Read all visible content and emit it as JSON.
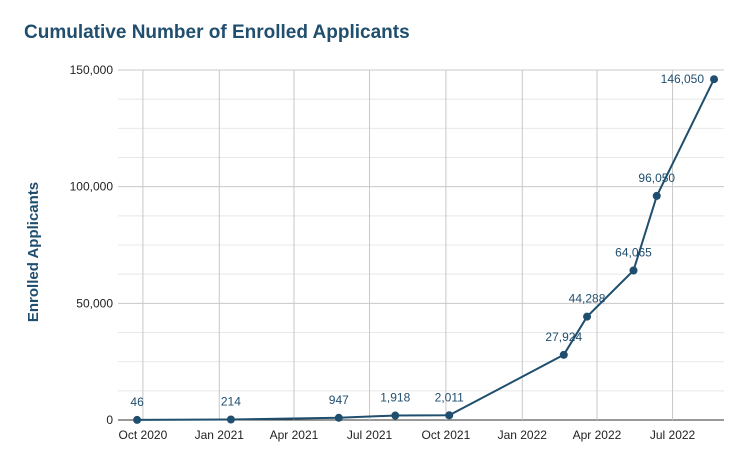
{
  "chart_data": {
    "type": "line",
    "title": "Cumulative Number of Enrolled Applicants",
    "xlabel": "",
    "ylabel": "Enrolled Applicants",
    "ylim": [
      0,
      150000
    ],
    "xlim": [
      "2020-09-01",
      "2022-09-01"
    ],
    "y_ticks": [
      {
        "value": 0,
        "label": "0"
      },
      {
        "value": 50000,
        "label": "50,000"
      },
      {
        "value": 100000,
        "label": "100,000"
      },
      {
        "value": 150000,
        "label": "150,000"
      }
    ],
    "x_ticks": [
      {
        "date": "2020-10-01",
        "label": "Oct 2020"
      },
      {
        "date": "2021-01-01",
        "label": "Jan 2021"
      },
      {
        "date": "2021-04-01",
        "label": "Apr 2021"
      },
      {
        "date": "2021-07-01",
        "label": "Jul 2021"
      },
      {
        "date": "2021-10-01",
        "label": "Oct 2021"
      },
      {
        "date": "2022-01-01",
        "label": "Jan 2022"
      },
      {
        "date": "2022-04-01",
        "label": "Apr 2022"
      },
      {
        "date": "2022-07-01",
        "label": "Jul 2022"
      }
    ],
    "points": [
      {
        "date": "2020-09-24",
        "value": 46,
        "label": "46"
      },
      {
        "date": "2021-01-15",
        "value": 214,
        "label": "214"
      },
      {
        "date": "2021-05-25",
        "value": 947,
        "label": "947"
      },
      {
        "date": "2021-08-01",
        "value": 1918,
        "label": "1,918"
      },
      {
        "date": "2021-10-05",
        "value": 2011,
        "label": "2,011"
      },
      {
        "date": "2022-02-20",
        "value": 27924,
        "label": "27,924"
      },
      {
        "date": "2022-03-20",
        "value": 44288,
        "label": "44,288"
      },
      {
        "date": "2022-05-15",
        "value": 64065,
        "label": "64,065"
      },
      {
        "date": "2022-06-12",
        "value": 96050,
        "label": "96,050"
      },
      {
        "date": "2022-08-20",
        "value": 146050,
        "label": "146,050"
      }
    ],
    "grid": true,
    "minor_grid": true,
    "legend": "none",
    "colors": {
      "line": "#1f4e6e",
      "marker": "#1f4e6e",
      "title": "#1f4e6e",
      "grid_major": "#c8c8c8",
      "grid_minor": "#e8e8e8"
    }
  }
}
